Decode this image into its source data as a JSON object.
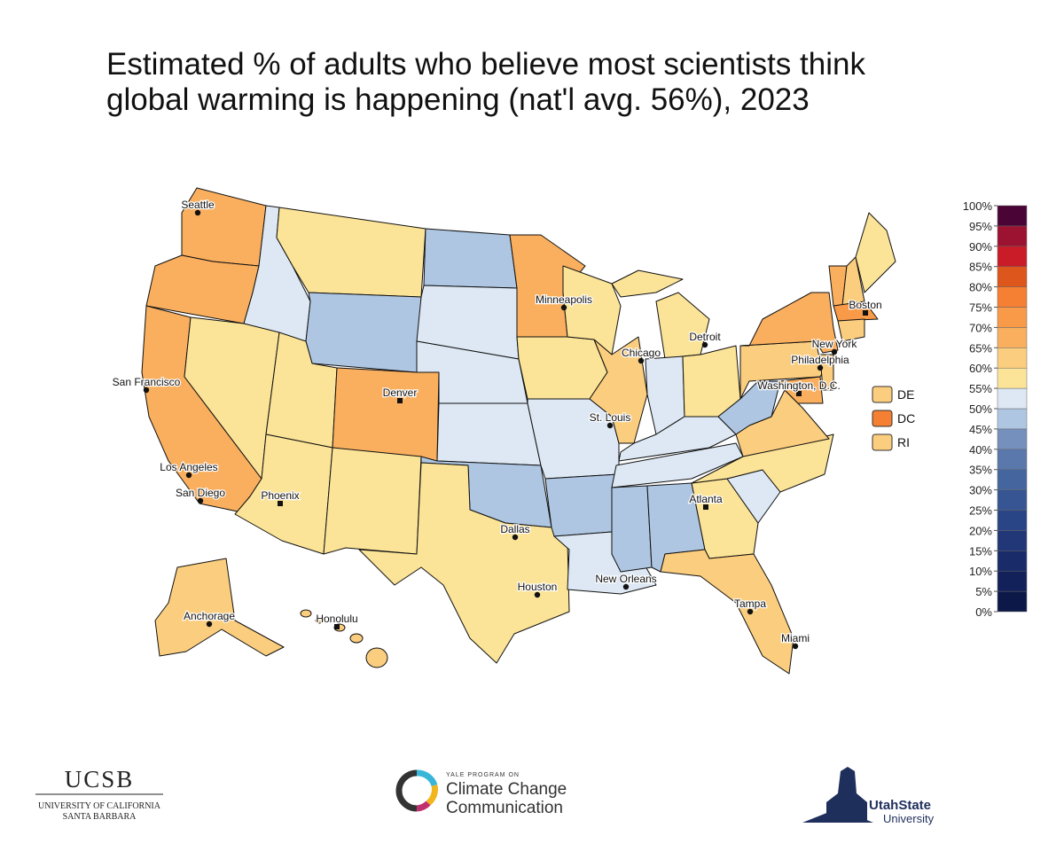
{
  "title": [
    "Estimated % of adults who believe most scientists think",
    "global warming is happening (nat'l avg. 56%), 2023"
  ],
  "legend": {
    "ticks": [
      {
        "value": 0,
        "label": "0%"
      },
      {
        "value": 5,
        "label": "5%"
      },
      {
        "value": 10,
        "label": "10%"
      },
      {
        "value": 15,
        "label": "15%"
      },
      {
        "value": 20,
        "label": "20%"
      },
      {
        "value": 25,
        "label": "25%"
      },
      {
        "value": 30,
        "label": "30%"
      },
      {
        "value": 35,
        "label": "35%"
      },
      {
        "value": 40,
        "label": "40%"
      },
      {
        "value": 45,
        "label": "45%"
      },
      {
        "value": 50,
        "label": "50%"
      },
      {
        "value": 55,
        "label": "55%"
      },
      {
        "value": 60,
        "label": "60%"
      },
      {
        "value": 65,
        "label": "65%"
      },
      {
        "value": 70,
        "label": "70%"
      },
      {
        "value": 75,
        "label": "75%"
      },
      {
        "value": 80,
        "label": "80%"
      },
      {
        "value": 85,
        "label": "85%"
      },
      {
        "value": 90,
        "label": "90%"
      },
      {
        "value": 95,
        "label": "95%"
      },
      {
        "value": 100,
        "label": "100%"
      }
    ],
    "colors": [
      "#0c1848",
      "#12215a",
      "#192b69",
      "#213777",
      "#2a4585",
      "#365592",
      "#45659e",
      "#5a78ac",
      "#7590bd",
      "#aec6e2",
      "#dde8f4",
      "#fbe397",
      "#fbcd7e",
      "#f9af5e",
      "#f89a48",
      "#f57f32",
      "#dd561c",
      "#c91b28",
      "#9c1231",
      "#4a0436"
    ]
  },
  "state_colors": {
    "WA": "#f9af5e",
    "OR": "#f9af5e",
    "CA": "#f9af5e",
    "ID": "#dde8f4",
    "NV": "#fbe397",
    "MT": "#fbe397",
    "WY": "#aec6e2",
    "UT": "#fbe397",
    "AZ": "#fbe397",
    "CO": "#f9af5e",
    "NM": "#fbe397",
    "ND": "#aec6e2",
    "SD": "#dde8f4",
    "NE": "#dde8f4",
    "KS": "#dde8f4",
    "OK": "#aec6e2",
    "TX": "#fbe397",
    "MN": "#f9af5e",
    "IA": "#fbe397",
    "MO": "#dde8f4",
    "AR": "#aec6e2",
    "LA": "#dde8f4",
    "WI": "#fbe397",
    "IL": "#fbcd7e",
    "MI": "#fbe397",
    "MIU": "#fbe397",
    "IN": "#dde8f4",
    "OH": "#fbe397",
    "KY": "#dde8f4",
    "TN": "#dde8f4",
    "MS": "#aec6e2",
    "AL": "#aec6e2",
    "GA": "#fbe397",
    "FL": "#fbcd7e",
    "SC": "#dde8f4",
    "NC": "#fbe397",
    "VA": "#fbcd7e",
    "WV": "#aec6e2",
    "PA": "#fbcd7e",
    "NY": "#f9af5e",
    "VT": "#f9af5e",
    "NH": "#fbcd7e",
    "ME": "#fbe397",
    "MA": "#f89a48",
    "CT": "#fbcd7e",
    "NJ": "#fbcd7e",
    "MD": "#f9af5e",
    "AK": "#fbcd7e",
    "HI": "#fbcd7e"
  },
  "small_states": [
    {
      "label": "DE",
      "color": "#fbcd7e"
    },
    {
      "label": "DC",
      "color": "#f57f32"
    },
    {
      "label": "RI",
      "color": "#fbcd7e"
    }
  ],
  "cities": [
    "Seattle",
    "San Francisco",
    "Los Angeles",
    "San Diego",
    "Phoenix",
    "Denver",
    "Dallas",
    "Houston",
    "St. Louis",
    "Minneapolis",
    "Chicago",
    "Detroit",
    "New Orleans",
    "Atlanta",
    "Tampa",
    "Miami",
    "Washington, D.C.",
    "Philadelphia",
    "New York",
    "Boston",
    "Anchorage",
    "Honolulu"
  ],
  "logos": {
    "ucsb": "UCSB",
    "ucsb_sub": [
      "UNIVERSITY OF CALIFORNIA",
      "SANTA BARBARA"
    ],
    "yale_top": "YALE PROGRAM ON",
    "yale": [
      "Climate Change",
      "Communication"
    ],
    "usu": [
      "UtahState",
      "University"
    ]
  }
}
